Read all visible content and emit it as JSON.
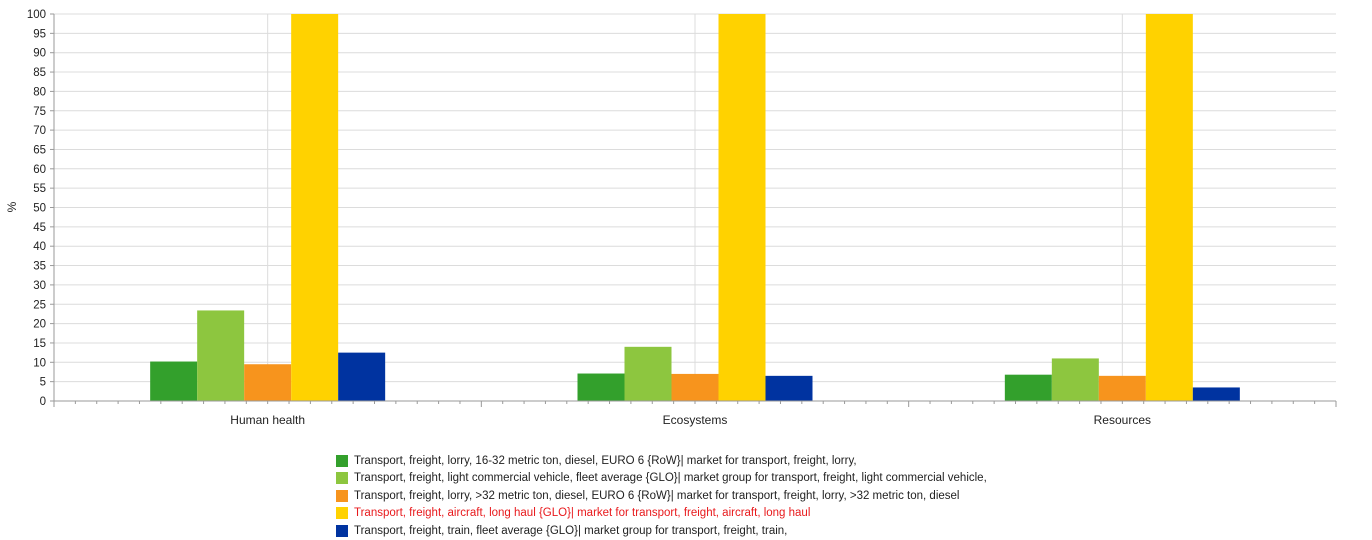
{
  "chart_data": {
    "type": "bar",
    "ylabel": "%",
    "xlabel": "",
    "ylim": [
      0,
      100
    ],
    "yticks": [
      0,
      5,
      10,
      15,
      20,
      25,
      30,
      35,
      40,
      45,
      50,
      55,
      60,
      65,
      70,
      75,
      80,
      85,
      90,
      95,
      100
    ],
    "categories": [
      "Human health",
      "Ecosystems",
      "Resources"
    ],
    "grid": true,
    "legend_position": "bottom",
    "series": [
      {
        "name": "Transport, freight, lorry, 16-32 metric ton, diesel, EURO 6 {RoW}| market for transport, freight, lorry,",
        "color": "#33a02c",
        "values": [
          10.2,
          7.1,
          6.8
        ]
      },
      {
        "name": "Transport, freight, light commercial vehicle, fleet average {GLO}| market group for transport, freight, light commercial vehicle,",
        "color": "#8dc63f",
        "values": [
          23.4,
          14.0,
          11.0
        ]
      },
      {
        "name": "Transport, freight, lorry, >32 metric ton, diesel, EURO 6 {RoW}| market for transport, freight, lorry, >32 metric ton, diesel",
        "color": "#f7941d",
        "values": [
          9.5,
          7.0,
          6.5
        ]
      },
      {
        "name": "Transport, freight, aircraft, long haul {GLO}| market for transport, freight, aircraft, long haul",
        "color": "#ffd200",
        "values": [
          100,
          100,
          100
        ]
      },
      {
        "name": "Transport, freight, train, fleet average {GLO}| market group for transport, freight, train,",
        "color": "#0033a0",
        "values": [
          12.5,
          6.5,
          3.5
        ]
      }
    ],
    "highlighted_legend_color": "#e8191c",
    "highlighted_series_index": 3
  }
}
